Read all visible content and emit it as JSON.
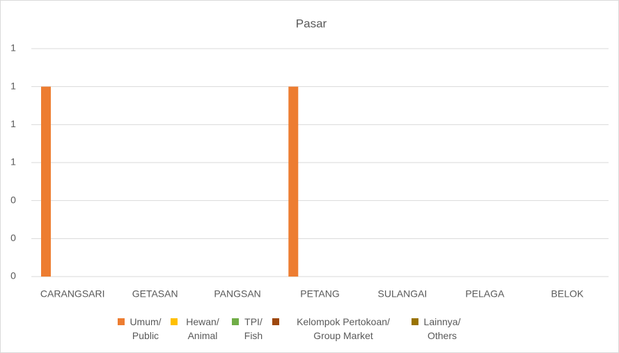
{
  "chart_data": {
    "type": "bar",
    "title": "Pasar",
    "categories": [
      "CARANGSARI",
      "GETASAN",
      "PANGSAN",
      "PETANG",
      "SULANGAI",
      "PELAGA",
      "BELOK"
    ],
    "series": [
      {
        "name": "Umum/ Public",
        "color": "#ed7d31",
        "values": [
          1,
          0,
          0,
          1,
          0,
          0,
          0
        ]
      },
      {
        "name": "Hewan/ Animal",
        "color": "#ffc000",
        "values": [
          0,
          0,
          0,
          0,
          0,
          0,
          0
        ]
      },
      {
        "name": "TPI/ Fish",
        "color": "#70ad47",
        "values": [
          0,
          0,
          0,
          0,
          0,
          0,
          0
        ]
      },
      {
        "name": "Kelompok Pertokoan/ Group Market",
        "color": "#9e480e",
        "values": [
          0,
          0,
          0,
          0,
          0,
          0,
          0
        ]
      },
      {
        "name": "Lainnya/ Others",
        "color": "#997300",
        "values": [
          0,
          0,
          0,
          0,
          0,
          0,
          0
        ]
      }
    ],
    "ylim": [
      0,
      1.2
    ],
    "yticks": [
      0,
      {
        "value": 0.2,
        "label": "0"
      },
      {
        "value": 0.4,
        "label": "0"
      },
      {
        "value": 0.6,
        "label": "1"
      },
      {
        "value": 0.8,
        "label": "1"
      },
      1,
      {
        "value": 1.2,
        "label": "1"
      }
    ],
    "grid": true,
    "legend": "bottom"
  }
}
